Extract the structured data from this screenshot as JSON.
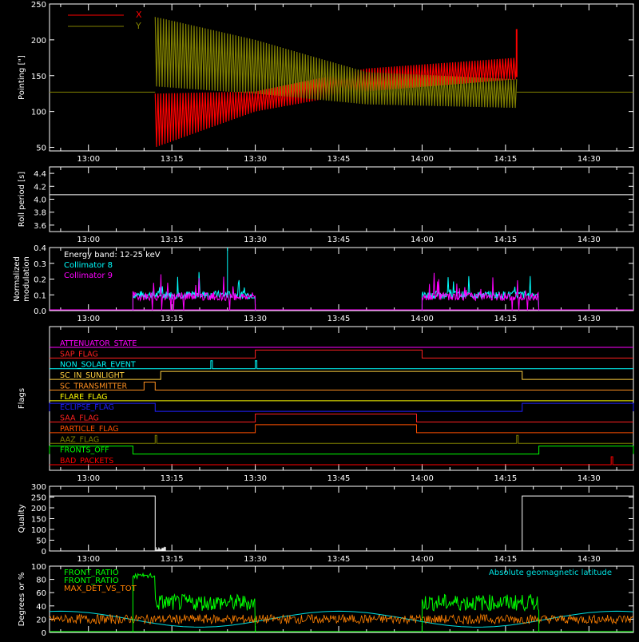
{
  "colors": {
    "background": "#000000",
    "axis": "#ffffff",
    "x_series": "#ff0000",
    "y_series": "#808000",
    "collimator8": "#00ffff",
    "collimator9": "#ff00ff",
    "front_ratio": "#00ff00",
    "max_det": "#ff8000",
    "geomag": "#00e0e0"
  },
  "chart_data": [
    {
      "id": "pointing",
      "type": "line",
      "ylabel": "Pointing [\"]",
      "ylim": [
        45,
        250
      ],
      "xlim": [
        "12:53",
        "14:38"
      ],
      "yticks": [
        "50",
        "100",
        "150",
        "200",
        "250"
      ],
      "xticks": [
        "13:00",
        "13:15",
        "13:30",
        "13:45",
        "14:00",
        "14:15",
        "14:30"
      ],
      "legend": [
        "X",
        "Y"
      ],
      "baseline": 127,
      "series": [
        {
          "name": "X",
          "envelope_upper": [
            {
              "t": "13:12",
              "v": 125
            },
            {
              "t": "13:30",
              "v": 128
            },
            {
              "t": "13:50",
              "v": 160
            },
            {
              "t": "14:17",
              "v": 175
            }
          ],
          "envelope_lower": [
            {
              "t": "13:12",
              "v": 50
            },
            {
              "t": "13:30",
              "v": 100
            },
            {
              "t": "13:50",
              "v": 128
            },
            {
              "t": "14:17",
              "v": 145
            }
          ]
        },
        {
          "name": "Y",
          "envelope_upper": [
            {
              "t": "13:12",
              "v": 232
            },
            {
              "t": "13:30",
              "v": 200
            },
            {
              "t": "13:50",
              "v": 155
            },
            {
              "t": "14:17",
              "v": 145
            }
          ],
          "envelope_lower": [
            {
              "t": "13:12",
              "v": 135
            },
            {
              "t": "13:30",
              "v": 125
            },
            {
              "t": "13:50",
              "v": 110
            },
            {
              "t": "14:17",
              "v": 105
            }
          ]
        }
      ]
    },
    {
      "id": "roll",
      "type": "line",
      "ylabel": "Roll period [s]",
      "ylim": [
        3.5,
        4.5
      ],
      "yticks": [
        "3.6",
        "3.8",
        "4.0",
        "4.2",
        "4.4"
      ],
      "xticks": [
        "13:00",
        "13:15",
        "13:30",
        "13:45",
        "14:00",
        "14:15",
        "14:30"
      ],
      "value": 4.07
    },
    {
      "id": "modulation",
      "type": "line",
      "ylabel": "Normalized modulation",
      "ylim": [
        0,
        0.4
      ],
      "yticks": [
        "0.0",
        "0.1",
        "0.2",
        "0.3",
        "0.4"
      ],
      "xticks": [
        "13:00",
        "13:15",
        "13:30",
        "13:45",
        "14:00",
        "14:15",
        "14:30"
      ],
      "annotation": "Energy band: 12-25 keV",
      "series": [
        {
          "name": "Collimator 8",
          "segments": [
            [
              "13:08",
              "13:30"
            ],
            [
              "14:00",
              "14:21"
            ]
          ],
          "typical": 0.1
        },
        {
          "name": "Collimator 9",
          "segments": [
            [
              "13:08",
              "13:30"
            ],
            [
              "14:00",
              "14:21"
            ]
          ],
          "typical": 0.09
        }
      ]
    },
    {
      "id": "flags",
      "type": "line",
      "ylabel": "Flags",
      "xticks": [
        "13:00",
        "13:15",
        "13:30",
        "13:45",
        "14:00",
        "14:15",
        "14:30"
      ],
      "flags": [
        {
          "name": "ATTENUATOR_STATE",
          "color": "#ff00ff",
          "on": []
        },
        {
          "name": "SAP_FLAG",
          "color": "#ff2020",
          "on": [
            [
              "13:30",
              "14:00"
            ]
          ]
        },
        {
          "name": "NON_SOLAR_EVENT",
          "color": "#00ffff",
          "on": [
            [
              "13:22",
              "13:22"
            ],
            [
              "13:30",
              "13:30"
            ]
          ]
        },
        {
          "name": "SC_IN_SUNLIGHT",
          "color": "#ffd040",
          "on": [
            [
              "13:13",
              "14:18"
            ]
          ]
        },
        {
          "name": "SC_TRANSMITTER",
          "color": "#ff9020",
          "on": [
            [
              "13:10",
              "13:12"
            ]
          ]
        },
        {
          "name": "FLARE_FLAG",
          "color": "#ffff00",
          "on": []
        },
        {
          "name": "ECLIPSE_FLAG",
          "color": "#2020ff",
          "on": [
            [
              "12:53",
              "13:12"
            ],
            [
              "14:18",
              "14:38"
            ]
          ]
        },
        {
          "name": "SAA_FLAG",
          "color": "#ff2020",
          "on": [
            [
              "13:30",
              "13:59"
            ]
          ]
        },
        {
          "name": "PARTICLE_FLAG",
          "color": "#ff5000",
          "on": [
            [
              "13:30",
              "13:59"
            ]
          ]
        },
        {
          "name": "AAZ_FLAG",
          "color": "#808000",
          "on": [
            [
              "13:12",
              "13:12"
            ],
            [
              "14:17",
              "14:17"
            ]
          ]
        },
        {
          "name": "FRONTS_OFF",
          "color": "#00ff00",
          "on": [
            [
              "12:53",
              "13:08"
            ],
            [
              "14:21",
              "14:38"
            ]
          ]
        },
        {
          "name": "BAD_PACKETS",
          "color": "#ff0000",
          "on": [
            [
              "14:34",
              "14:34"
            ]
          ]
        }
      ]
    },
    {
      "id": "quality",
      "type": "line",
      "ylabel": "Quality",
      "ylim": [
        0,
        300
      ],
      "yticks": [
        "0",
        "50",
        "100",
        "150",
        "200",
        "250",
        "300"
      ],
      "xticks": [
        "13:00",
        "13:15",
        "13:30",
        "13:45",
        "14:00",
        "14:15",
        "14:30"
      ],
      "series": [
        {
          "points": [
            [
              "12:53",
              255
            ],
            [
              "13:12",
              255
            ],
            [
              "13:12",
              0
            ],
            [
              "14:18",
              0
            ],
            [
              "14:18",
              255
            ],
            [
              "14:38",
              255
            ]
          ]
        }
      ]
    },
    {
      "id": "ratios",
      "type": "line",
      "ylabel": "Degrees or %",
      "ylim": [
        0,
        100
      ],
      "yticks": [
        "0",
        "20",
        "40",
        "60",
        "80",
        "100"
      ],
      "legend": [
        "FRONT_RATIO",
        "FRONT_RATIO",
        "MAX_DET_VS_TOT"
      ],
      "annotation": "Absolute geomagnetic latitude",
      "series": [
        {
          "name": "FRONT_RATIO",
          "segments": [
            [
              "13:08",
              "13:30"
            ],
            [
              "14:00",
              "14:21"
            ]
          ],
          "typical": 45
        },
        {
          "name": "MAX_DET_VS_TOT",
          "typical": 20
        },
        {
          "name": "Absolute geomagnetic latitude",
          "points": [
            [
              "12:53",
              30
            ],
            [
              "13:08",
              30
            ],
            [
              "13:20",
              10
            ],
            [
              "13:45",
              32
            ],
            [
              "14:10",
              10
            ],
            [
              "14:38",
              30
            ]
          ]
        }
      ]
    }
  ]
}
